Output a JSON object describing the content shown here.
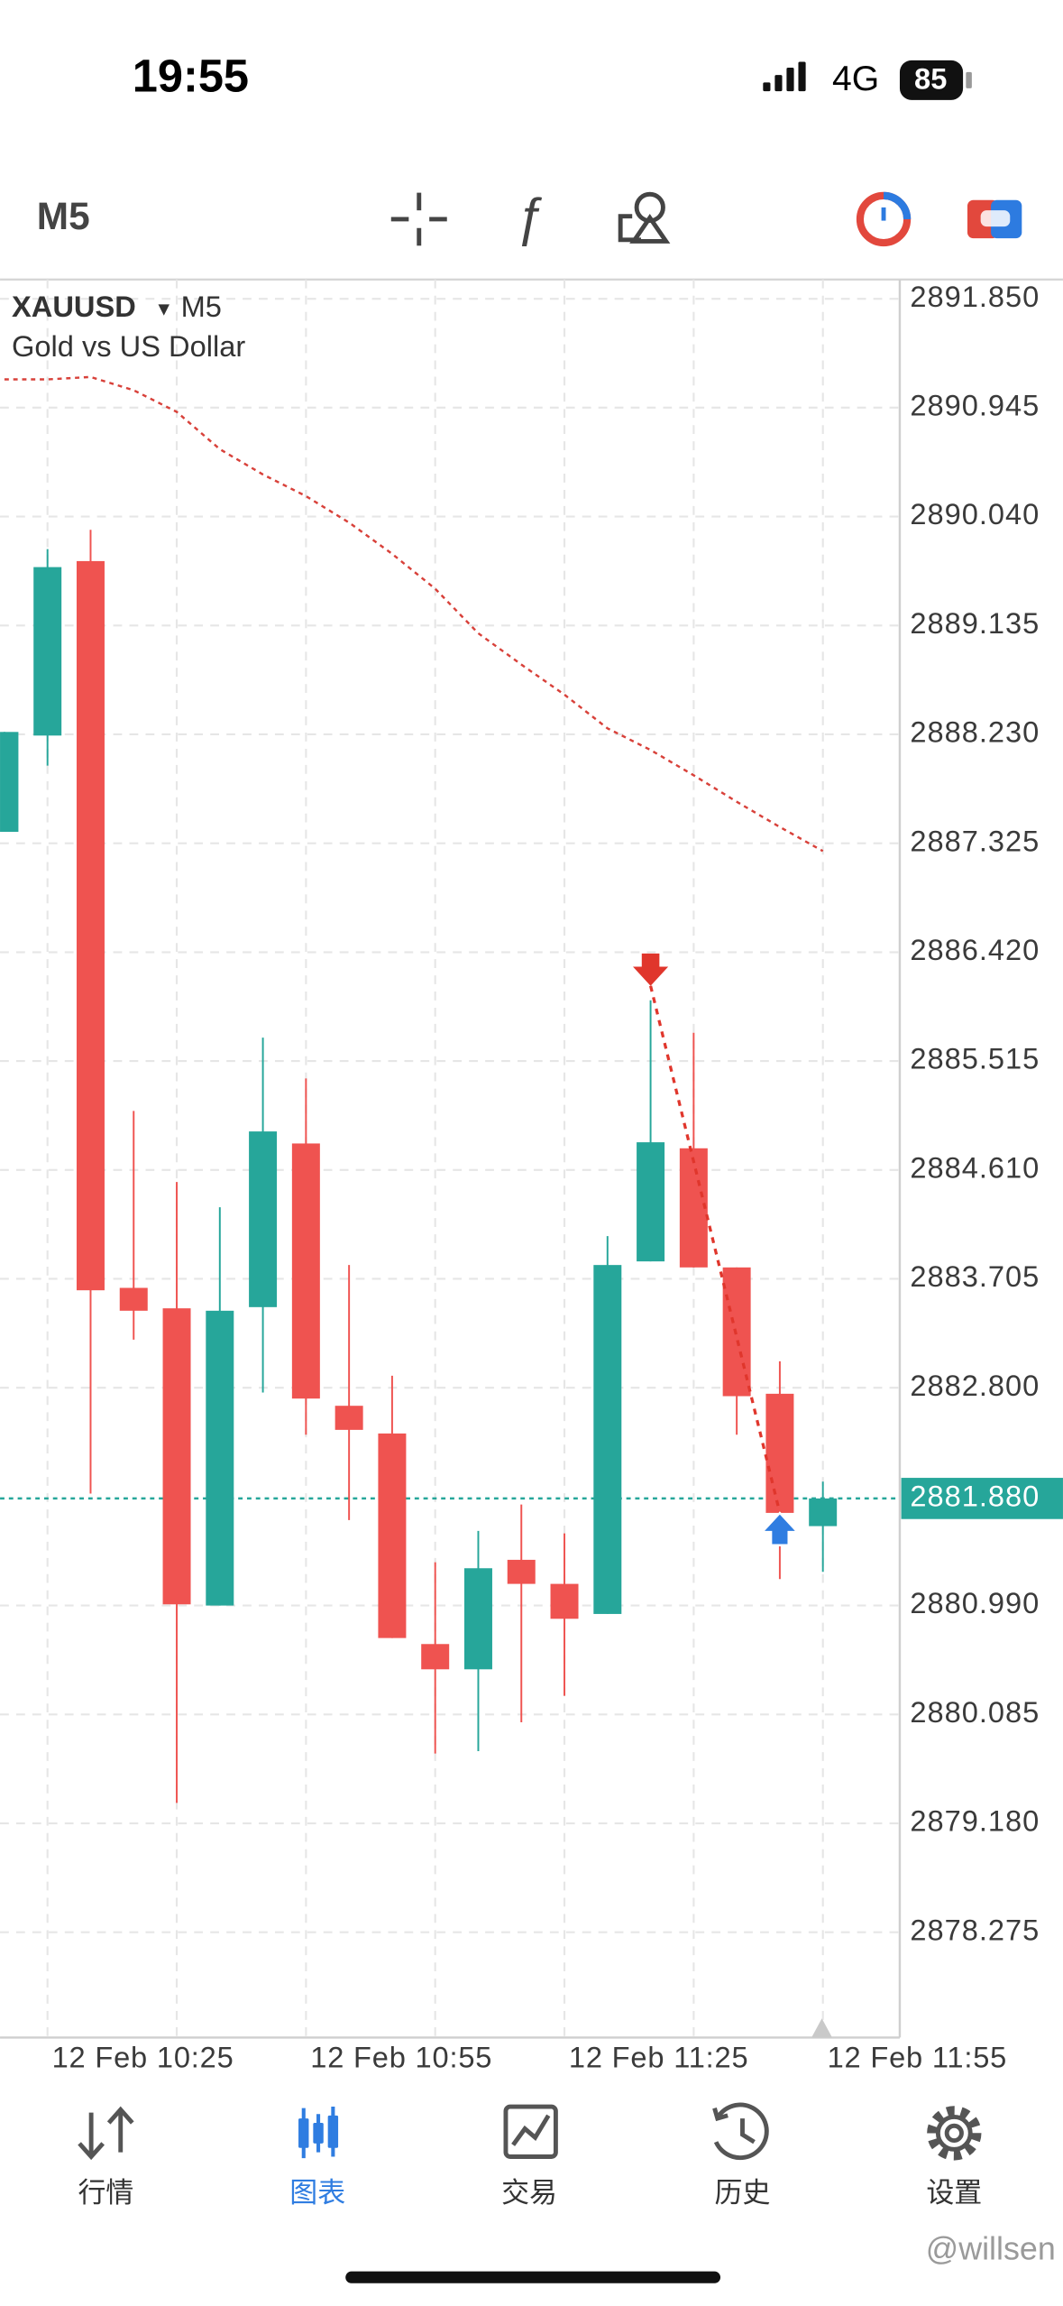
{
  "status_bar": {
    "time": "19:55",
    "network": "4G",
    "battery": "85"
  },
  "toolbar": {
    "timeframe": "M5"
  },
  "chart_data": {
    "type": "candlestick",
    "symbol": "XAUUSD",
    "timeframe": "M5",
    "description": "Gold vs US Dollar",
    "categories": [
      null,
      "12 Feb 10:25",
      null,
      null,
      null,
      null,
      null,
      "12 Feb 10:55",
      null,
      null,
      null,
      null,
      null,
      "12 Feb 11:25",
      null,
      null,
      null,
      null,
      null,
      "12 Feb 11:55"
    ],
    "open": [
      2887.42,
      2888.22,
      2889.67,
      2883.63,
      2883.46,
      2880.99,
      2883.47,
      2884.83,
      2882.65,
      2882.42,
      2880.67,
      2880.46,
      2881.37,
      2881.17,
      2880.92,
      2883.85,
      2884.79,
      2883.8,
      2882.75,
      2881.65
    ],
    "high": [
      2888.25,
      2889.77,
      2889.93,
      2885.1,
      2884.51,
      2884.3,
      2885.71,
      2885.37,
      2883.82,
      2882.9,
      2881.35,
      2881.61,
      2881.83,
      2881.59,
      2884.06,
      2886.02,
      2885.75,
      2883.8,
      2883.02,
      2882.02
    ],
    "low": [
      2887.42,
      2887.97,
      2881.92,
      2883.2,
      2879.35,
      2880.99,
      2882.76,
      2882.41,
      2881.7,
      2880.72,
      2879.76,
      2879.78,
      2880.02,
      2880.24,
      2880.92,
      2883.85,
      2883.8,
      2882.41,
      2881.21,
      2881.27
    ],
    "close": [
      2888.25,
      2889.62,
      2883.61,
      2883.44,
      2881.0,
      2883.44,
      2884.93,
      2882.71,
      2882.45,
      2880.72,
      2880.46,
      2881.3,
      2881.17,
      2880.88,
      2883.82,
      2884.84,
      2883.8,
      2882.73,
      2881.76,
      2881.88
    ],
    "up_color": "#26a69a",
    "down_color": "#ef5350",
    "moving_average": {
      "color": "#d8413a",
      "values": [
        2891.18,
        2891.18,
        2891.2,
        2891.09,
        2890.91,
        2890.6,
        2890.39,
        2890.21,
        2889.99,
        2889.73,
        2889.44,
        2889.07,
        2888.81,
        2888.56,
        2888.28,
        2888.1,
        2887.89,
        2887.67,
        2887.46,
        2887.26
      ]
    },
    "last_price": {
      "value": 2881.88,
      "label": "2881.880",
      "color": "#26a69a"
    },
    "trade": {
      "open_index": 15,
      "open_price": 2886.14,
      "open_color": "#e0362c",
      "close_index": 18,
      "close_price": 2881.76,
      "close_color": "#2f7de1"
    },
    "ylim": [
      2877.4,
      2892.01
    ],
    "yticks": [
      {
        "value": 2891.85,
        "label": "2891.850"
      },
      {
        "value": 2890.945,
        "label": "2890.945"
      },
      {
        "value": 2890.04,
        "label": "2890.040"
      },
      {
        "value": 2889.135,
        "label": "2889.135"
      },
      {
        "value": 2888.23,
        "label": "2888.230"
      },
      {
        "value": 2887.325,
        "label": "2887.325"
      },
      {
        "value": 2886.42,
        "label": "2886.420"
      },
      {
        "value": 2885.515,
        "label": "2885.515"
      },
      {
        "value": 2884.61,
        "label": "2884.610"
      },
      {
        "value": 2883.705,
        "label": "2883.705"
      },
      {
        "value": 2882.8,
        "label": "2882.800"
      },
      {
        "value": 2880.99,
        "label": "2880.990"
      },
      {
        "value": 2880.085,
        "label": "2880.085"
      },
      {
        "value": 2879.18,
        "label": "2879.180"
      },
      {
        "value": 2878.275,
        "label": "2878.275"
      }
    ],
    "grid": true
  },
  "nav": {
    "items": [
      "行情",
      "图表",
      "交易",
      "历史",
      "设置"
    ],
    "active": 1
  },
  "watermark": "@willsen"
}
